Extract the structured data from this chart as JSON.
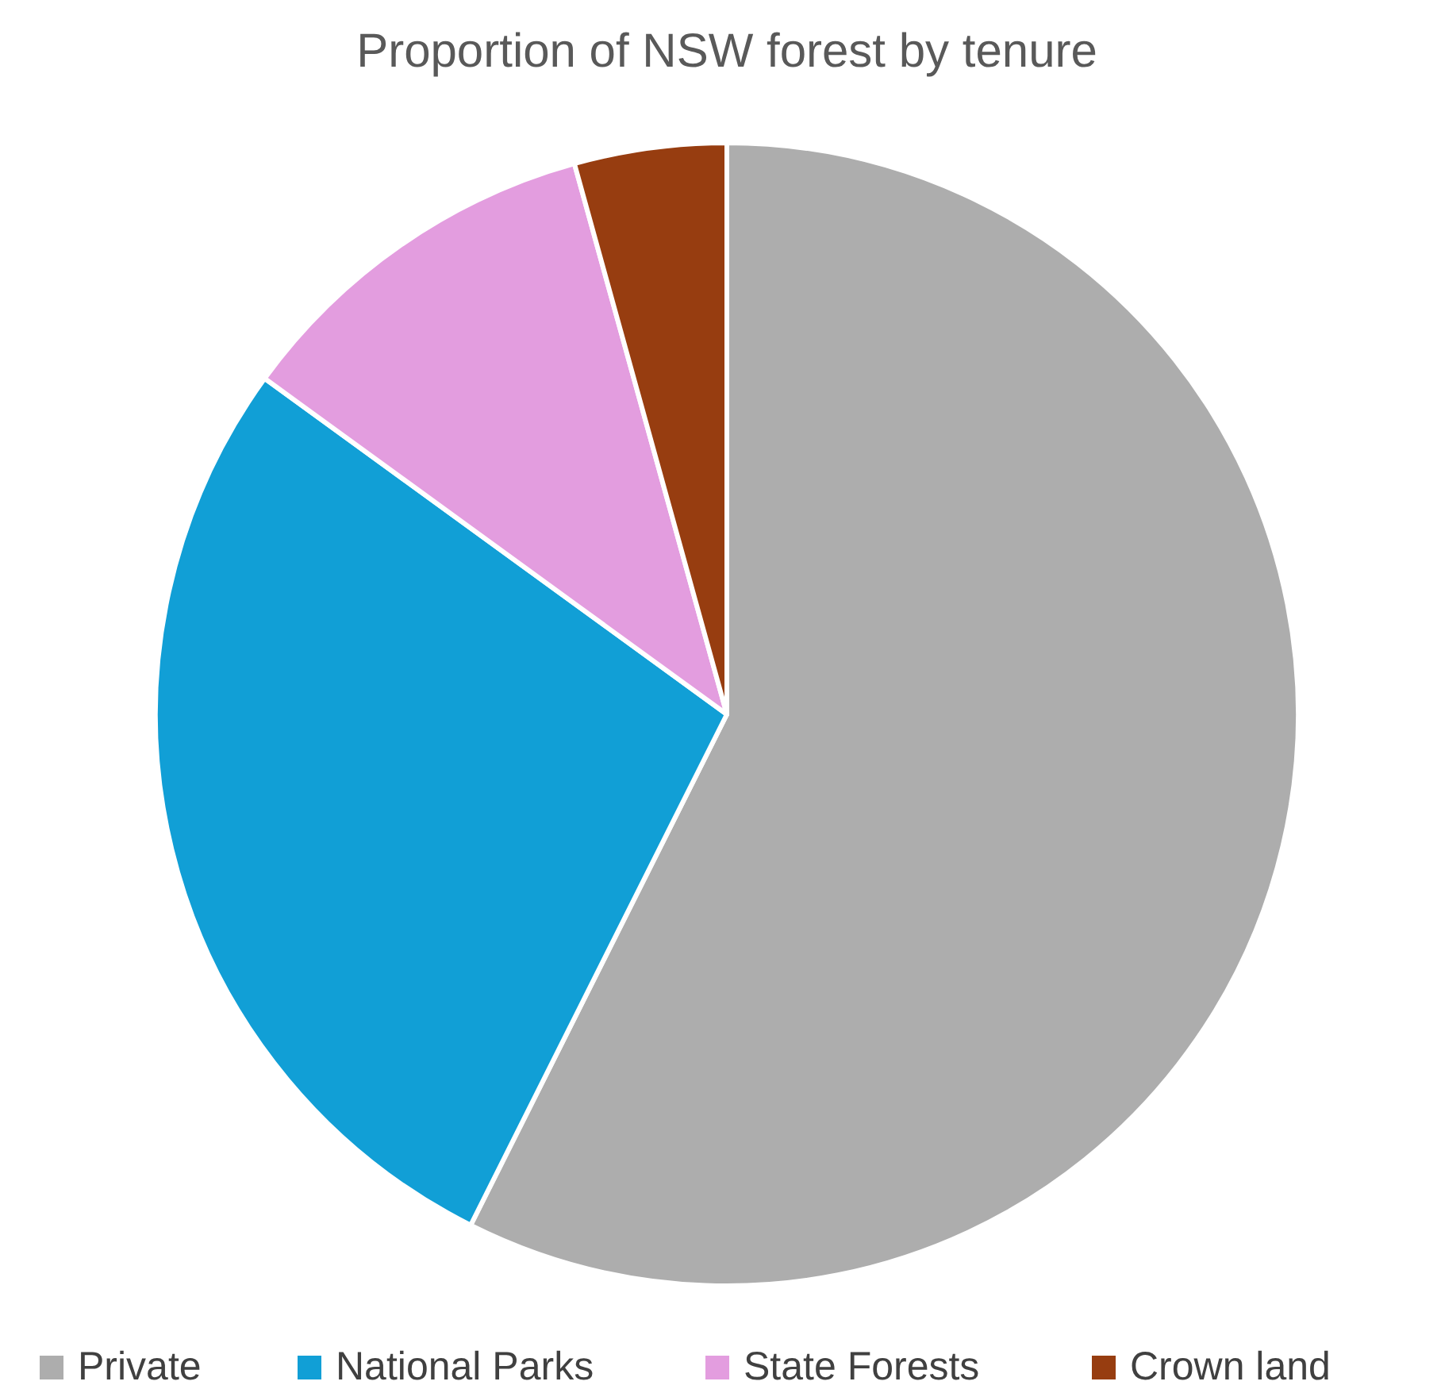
{
  "chart_data": {
    "type": "pie",
    "title": "Proportion of NSW forest by tenure",
    "categories": [
      "Private",
      "National Parks",
      "State Forests",
      "Crown land"
    ],
    "values": [
      57.4,
      27.6,
      10.7,
      4.3
    ],
    "colors": [
      "#adadad",
      "#119fd6",
      "#e39ddf",
      "#973d10"
    ],
    "legend": "bottom"
  }
}
